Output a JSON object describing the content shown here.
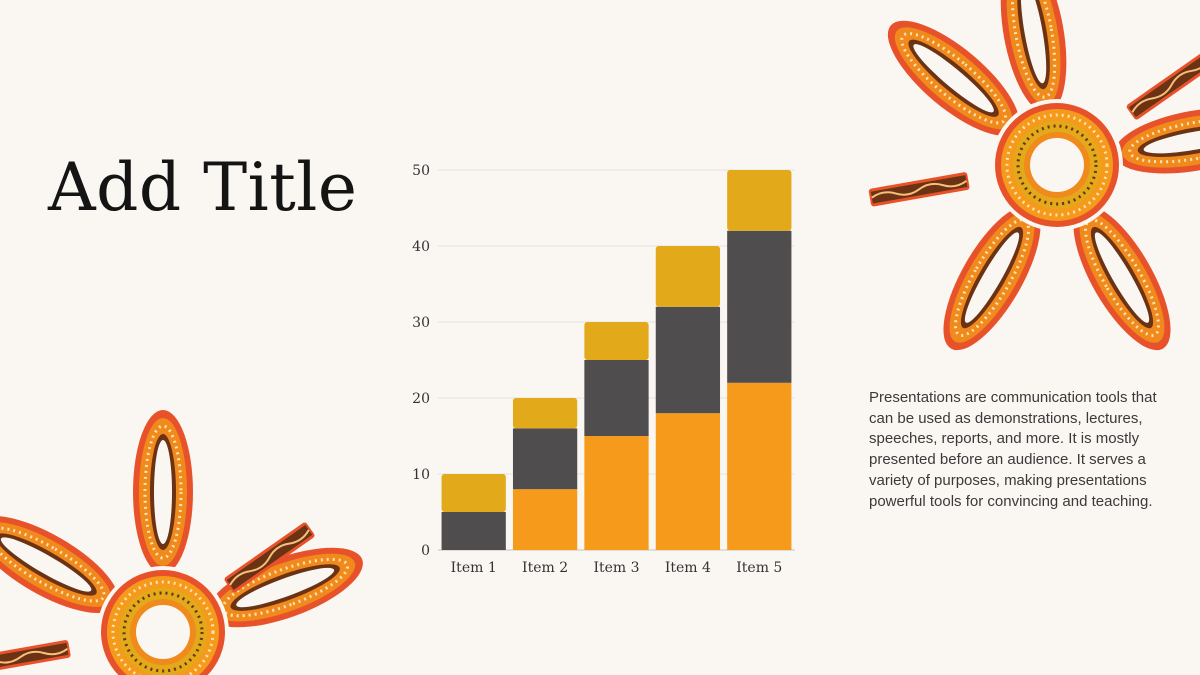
{
  "slide": {
    "title": "Add Title",
    "body": "Presentations are communication tools that can be used as demonstrations, lectures, speeches, reports, and more. It is mostly presented before an audience. It serves a variety of purposes, making presentations powerful tools for convincing and teaching."
  },
  "colors": {
    "background": "#faf6f2",
    "series_bottom": "#f59a1b",
    "series_middle": "#4f4d4d",
    "series_top": "#e2a91b",
    "decor_red": "#e8522a",
    "decor_orange": "#f08a1c",
    "decor_brown": "#6b3214"
  },
  "decoration": {
    "top_right_icon": "orange-dotted-flower-icon",
    "bottom_left_icon": "orange-dotted-flower-icon"
  },
  "chart_data": {
    "type": "bar",
    "stacked": true,
    "categories": [
      "Item 1",
      "Item 2",
      "Item 3",
      "Item 4",
      "Item 5"
    ],
    "series": [
      {
        "values": [
          0,
          8,
          15,
          18,
          22
        ]
      },
      {
        "values": [
          5,
          8,
          10,
          14,
          20
        ]
      },
      {
        "values": [
          5,
          4,
          5,
          8,
          8
        ]
      }
    ],
    "ylim": [
      0,
      50
    ],
    "yticks": [
      0,
      10,
      20,
      30,
      40,
      50
    ],
    "grid": true,
    "legend": "none"
  }
}
